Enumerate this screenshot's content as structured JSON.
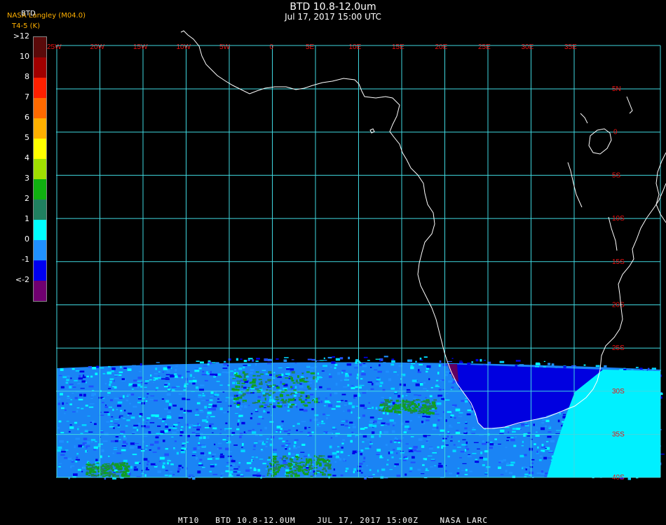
{
  "header": {
    "title": "BTD 10.8-12.0um",
    "subtitle": "Jul 17, 2017 15:00 UTC",
    "brand": "NASA Langley (M04.0)",
    "tag": "BTD",
    "unit": "T4-5 (K)"
  },
  "colorbar": {
    "labels": [
      ">12",
      "10",
      "8",
      "7",
      "6",
      "5",
      "4",
      "3",
      "2",
      "1",
      "0",
      "-1",
      "<-2"
    ],
    "colors": [
      "#5a0a0a",
      "#a00000",
      "#ff2000",
      "#ff6a00",
      "#ffb000",
      "#ffff00",
      "#a0e000",
      "#10b010",
      "#208060",
      "#00ffff",
      "#2090ff",
      "#0000f0",
      "#700070"
    ]
  },
  "map": {
    "lon_labels": [
      "25W",
      "20W",
      "15W",
      "10W",
      "5W",
      "0",
      "5E",
      "10E",
      "15E",
      "20E",
      "25E",
      "30E",
      "35E"
    ],
    "lat_labels": [
      "5N",
      "0",
      "5S",
      "10S",
      "15S",
      "20S",
      "25S",
      "30S",
      "35S",
      "40S"
    ],
    "grid_color": "#40d8e0",
    "coast_color": "#ffffff"
  },
  "footer": "MT10   BTD 10.8-12.0UM    JUL 17, 2017 15:00Z    NASA LARC"
}
